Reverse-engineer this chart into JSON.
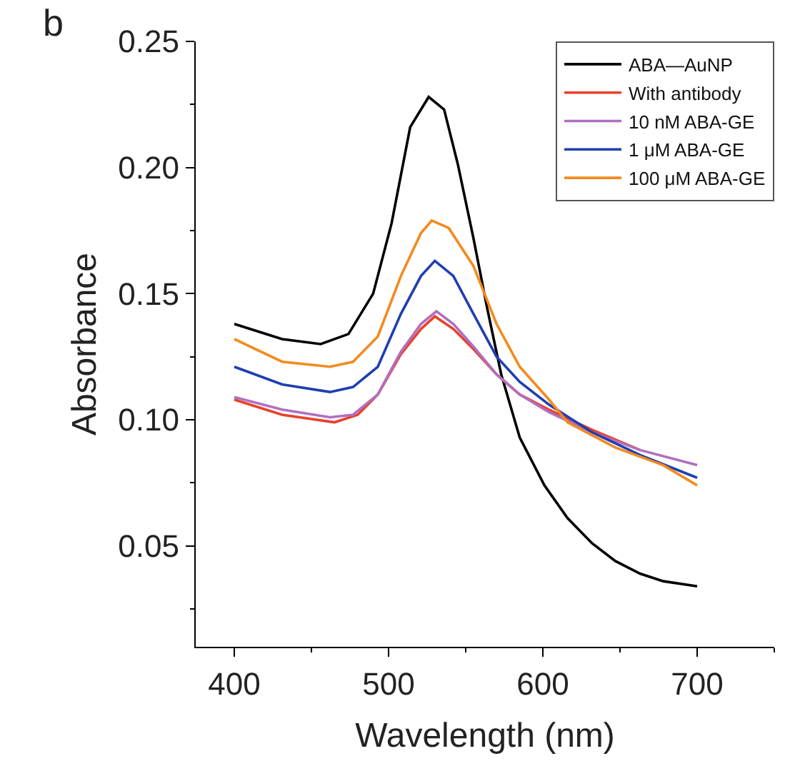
{
  "chart_data": {
    "type": "line",
    "xlabel": "Wavelength (nm)",
    "ylabel": "Absorbance",
    "annotations": [
      "b"
    ],
    "xlim": [
      375,
      750
    ],
    "xticks": [
      400,
      500,
      600,
      700
    ],
    "ylim": [
      0.01,
      0.25
    ],
    "yticks": [
      0.05,
      {
        "value": 0.1,
        "label": "0.10"
      },
      0.15,
      {
        "value": 0.2,
        "label": "0.20"
      },
      0.25
    ],
    "legend": "top right",
    "marker": "none",
    "line_style": "solid",
    "series": [
      {
        "name": "ABA—AuNP",
        "color": "#000000",
        "x": [
          400,
          431,
          456,
          474,
          490,
          502,
          514,
          526,
          536,
          545,
          555,
          564,
          573,
          585,
          601,
          616,
          632,
          647,
          663,
          678,
          700
        ],
        "values": [
          0.138,
          0.132,
          0.13,
          0.134,
          0.15,
          0.178,
          0.216,
          0.228,
          0.223,
          0.201,
          0.172,
          0.144,
          0.118,
          0.093,
          0.074,
          0.061,
          0.051,
          0.044,
          0.039,
          0.036,
          0.034
        ]
      },
      {
        "name": "With antibody",
        "color": "#e8412c",
        "x": [
          400,
          431,
          465,
          480,
          493,
          508,
          521,
          530,
          542,
          555,
          570,
          585,
          604,
          632,
          663
        ],
        "values": [
          0.108,
          0.102,
          0.099,
          0.102,
          0.11,
          0.126,
          0.136,
          0.141,
          0.136,
          0.128,
          0.118,
          0.11,
          0.104,
          0.096,
          0.088
        ]
      },
      {
        "name": "10 nM ABA-GE",
        "color": "#b06fc0",
        "x": [
          400,
          431,
          462,
          477,
          493,
          508,
          521,
          531,
          542,
          555,
          570,
          585,
          604,
          632,
          663,
          700
        ],
        "values": [
          0.109,
          0.104,
          0.101,
          0.102,
          0.11,
          0.127,
          0.138,
          0.143,
          0.138,
          0.129,
          0.118,
          0.11,
          0.103,
          0.095,
          0.088,
          0.082
        ]
      },
      {
        "name": "1 μM ABA-GE",
        "color": "#1f3fb0",
        "x": [
          400,
          431,
          462,
          477,
          493,
          508,
          521,
          530,
          542,
          555,
          570,
          585,
          604,
          632,
          663,
          700
        ],
        "values": [
          0.121,
          0.114,
          0.111,
          0.113,
          0.121,
          0.142,
          0.157,
          0.163,
          0.157,
          0.142,
          0.125,
          0.115,
          0.106,
          0.095,
          0.086,
          0.077
        ]
      },
      {
        "name": "100 μM ABA-GE",
        "color": "#f28a1e",
        "x": [
          400,
          431,
          462,
          477,
          493,
          508,
          521,
          528,
          539,
          555,
          570,
          585,
          604,
          616,
          647,
          678,
          700
        ],
        "values": [
          0.132,
          0.123,
          0.121,
          0.123,
          0.133,
          0.157,
          0.174,
          0.179,
          0.176,
          0.161,
          0.138,
          0.121,
          0.108,
          0.099,
          0.089,
          0.082,
          0.074
        ]
      }
    ]
  }
}
